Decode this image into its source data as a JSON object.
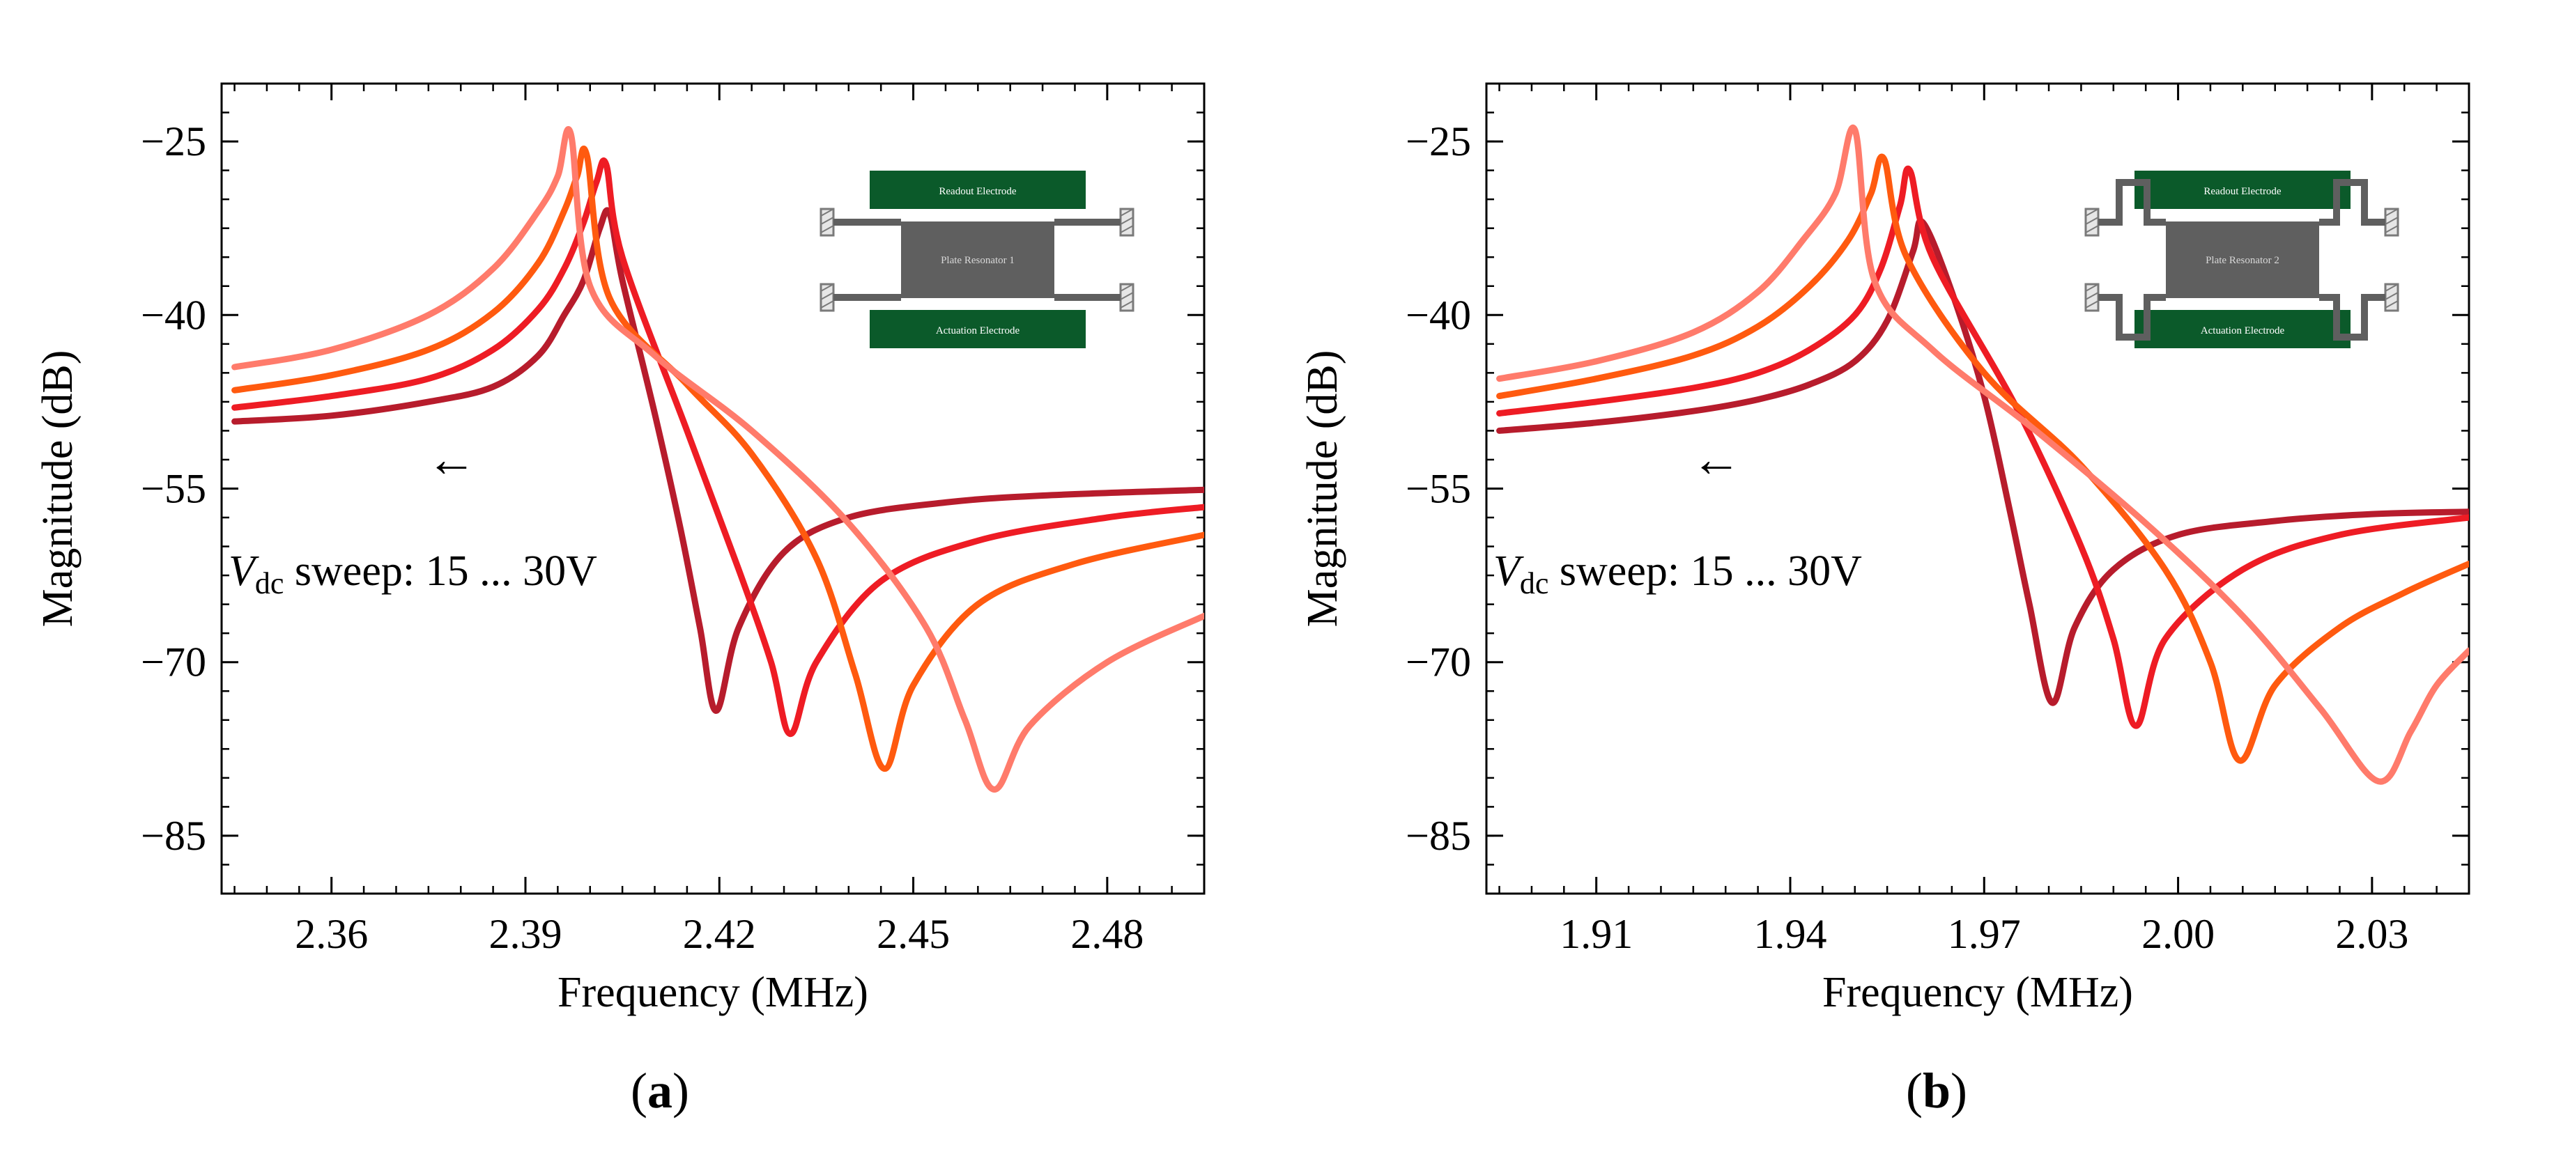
{
  "colors": {
    "curve_15V": "#b71c2c",
    "curve_20V": "#ee1c24",
    "curve_25V": "#ff5a0f",
    "curve_30V": "#ff7b6b",
    "electrode": "#0b5a2a",
    "plate": "#5f5f5f",
    "anchor_hatch": "#7a7a7a"
  },
  "chart_data": [
    {
      "type": "line",
      "panel_label": "a",
      "xlabel": "Frequency (MHz)",
      "ylabel": "Magnitude (dB)",
      "xlim": [
        2.343,
        2.495
      ],
      "ylim": [
        -90,
        -20
      ],
      "xticks": [
        2.36,
        2.39,
        2.42,
        2.45,
        2.48
      ],
      "xtick_labels": [
        "2.36",
        "2.39",
        "2.42",
        "2.45",
        "2.48"
      ],
      "yticks": [
        -25,
        -40,
        -55,
        -70,
        -85
      ],
      "ytick_labels": [
        "−25",
        "−40",
        "−55",
        "−70",
        "−85"
      ],
      "grid": false,
      "annotation": {
        "arrow": "←",
        "prefix_var": "V",
        "prefix_sub": "dc",
        "text": " sweep: 15 ... 30V"
      },
      "inset": {
        "readout_label": "Readout Electrode",
        "plate_label": "Plate Resonator 1",
        "actuation_label": "Actuation Electrode",
        "suspension": "straight"
      },
      "series": [
        {
          "x": [
            2.345,
            2.36,
            2.375,
            2.385,
            2.392,
            2.396,
            2.399,
            2.4015,
            2.403,
            2.405,
            2.41,
            2.414,
            2.417,
            2.4195,
            2.423,
            2.43,
            2.44,
            2.455,
            2.47,
            2.495
          ],
          "y": [
            -49.2,
            -48.7,
            -47.5,
            -46.2,
            -43.5,
            -40.0,
            -37.0,
            -32.5,
            -31.2,
            -37.0,
            -48.5,
            -58.5,
            -67.0,
            -74.2,
            -67.0,
            -60.5,
            -57.5,
            -56.2,
            -55.6,
            -55.1
          ]
        },
        {
          "x": [
            2.345,
            2.36,
            2.375,
            2.385,
            2.392,
            2.396,
            2.399,
            2.401,
            2.4025,
            2.405,
            2.415,
            2.423,
            2.428,
            2.431,
            2.435,
            2.445,
            2.46,
            2.48,
            2.495
          ],
          "y": [
            -48.0,
            -47.0,
            -45.5,
            -43.0,
            -39.5,
            -36.0,
            -32.0,
            -28.5,
            -27.0,
            -35.0,
            -50.0,
            -62.0,
            -70.0,
            -76.2,
            -70.0,
            -63.0,
            -59.5,
            -57.5,
            -56.6
          ]
        },
        {
          "x": [
            2.345,
            2.36,
            2.375,
            2.385,
            2.392,
            2.396,
            2.398,
            2.3995,
            2.403,
            2.415,
            2.425,
            2.435,
            2.441,
            2.4455,
            2.45,
            2.46,
            2.475,
            2.495
          ],
          "y": [
            -46.5,
            -45.2,
            -43.0,
            -39.8,
            -35.5,
            -31.0,
            -28.0,
            -26.2,
            -38.5,
            -46.0,
            -52.0,
            -61.0,
            -71.0,
            -79.2,
            -72.0,
            -65.0,
            -61.5,
            -59.0
          ]
        },
        {
          "x": [
            2.345,
            2.36,
            2.375,
            2.385,
            2.392,
            2.395,
            2.397,
            2.4,
            2.41,
            2.425,
            2.44,
            2.452,
            2.458,
            2.4625,
            2.468,
            2.48,
            2.495
          ],
          "y": [
            -44.5,
            -43.0,
            -40.0,
            -36.0,
            -31.0,
            -28.0,
            -24.3,
            -37.5,
            -43.5,
            -50.0,
            -58.0,
            -67.0,
            -75.0,
            -81.0,
            -75.5,
            -70.0,
            -66.0
          ]
        }
      ]
    },
    {
      "type": "line",
      "panel_label": "b",
      "xlabel": "Frequency (MHz)",
      "ylabel": "Magnitude (dB)",
      "xlim": [
        1.893,
        2.045
      ],
      "ylim": [
        -90,
        -20
      ],
      "xticks": [
        1.91,
        1.94,
        1.97,
        2.0,
        2.03
      ],
      "xtick_labels": [
        "1.91",
        "1.94",
        "1.97",
        "2.00",
        "2.03"
      ],
      "yticks": [
        -25,
        -40,
        -55,
        -70,
        -85
      ],
      "ytick_labels": [
        "−25",
        "−40",
        "−55",
        "−70",
        "−85"
      ],
      "grid": false,
      "annotation": {
        "arrow": "←",
        "prefix_var": "V",
        "prefix_sub": "dc",
        "text": " sweep: 15 ... 30V"
      },
      "inset": {
        "readout_label": "Readout Electrode",
        "plate_label": "Plate Resonator 2",
        "actuation_label": "Actuation Electrode",
        "suspension": "folded"
      },
      "series": [
        {
          "x": [
            1.895,
            1.91,
            1.925,
            1.935,
            1.943,
            1.95,
            1.955,
            1.959,
            1.9605,
            1.965,
            1.97,
            1.974,
            1.977,
            1.9805,
            1.984,
            1.99,
            2.0,
            2.015,
            2.03,
            2.045
          ],
          "y": [
            -50.0,
            -49.3,
            -48.3,
            -47.3,
            -46.0,
            -44.0,
            -40.5,
            -34.5,
            -32.0,
            -38.0,
            -47.0,
            -57.0,
            -65.0,
            -73.5,
            -67.0,
            -62.0,
            -59.0,
            -57.8,
            -57.2,
            -57.0
          ]
        },
        {
          "x": [
            1.895,
            1.91,
            1.925,
            1.935,
            1.943,
            1.95,
            1.954,
            1.957,
            1.9585,
            1.962,
            1.975,
            1.985,
            1.99,
            1.9935,
            1.998,
            2.01,
            2.025,
            2.045
          ],
          "y": [
            -48.5,
            -47.5,
            -46.3,
            -45.0,
            -43.0,
            -40.0,
            -36.0,
            -30.5,
            -27.5,
            -35.0,
            -48.0,
            -60.0,
            -68.0,
            -75.5,
            -68.0,
            -62.0,
            -59.0,
            -57.5
          ]
        },
        {
          "x": [
            1.895,
            1.91,
            1.925,
            1.935,
            1.943,
            1.949,
            1.9525,
            1.9545,
            1.958,
            1.97,
            1.985,
            1.998,
            2.005,
            2.0095,
            2.015,
            2.025,
            2.035,
            2.045
          ],
          "y": [
            -47.0,
            -45.5,
            -43.5,
            -41.0,
            -37.5,
            -33.5,
            -29.5,
            -26.5,
            -35.0,
            -45.0,
            -53.0,
            -62.0,
            -70.0,
            -78.5,
            -72.0,
            -67.0,
            -64.0,
            -61.5
          ]
        },
        {
          "x": [
            1.895,
            1.91,
            1.925,
            1.935,
            1.942,
            1.947,
            1.95,
            1.953,
            1.962,
            1.978,
            1.995,
            2.01,
            2.022,
            2.031,
            2.036,
            2.04,
            2.045
          ],
          "y": [
            -45.5,
            -44.0,
            -41.5,
            -38.0,
            -33.5,
            -29.5,
            -24.0,
            -37.0,
            -43.0,
            -50.0,
            -58.0,
            -66.0,
            -74.0,
            -80.3,
            -76.0,
            -72.0,
            -69.0
          ]
        }
      ]
    }
  ]
}
